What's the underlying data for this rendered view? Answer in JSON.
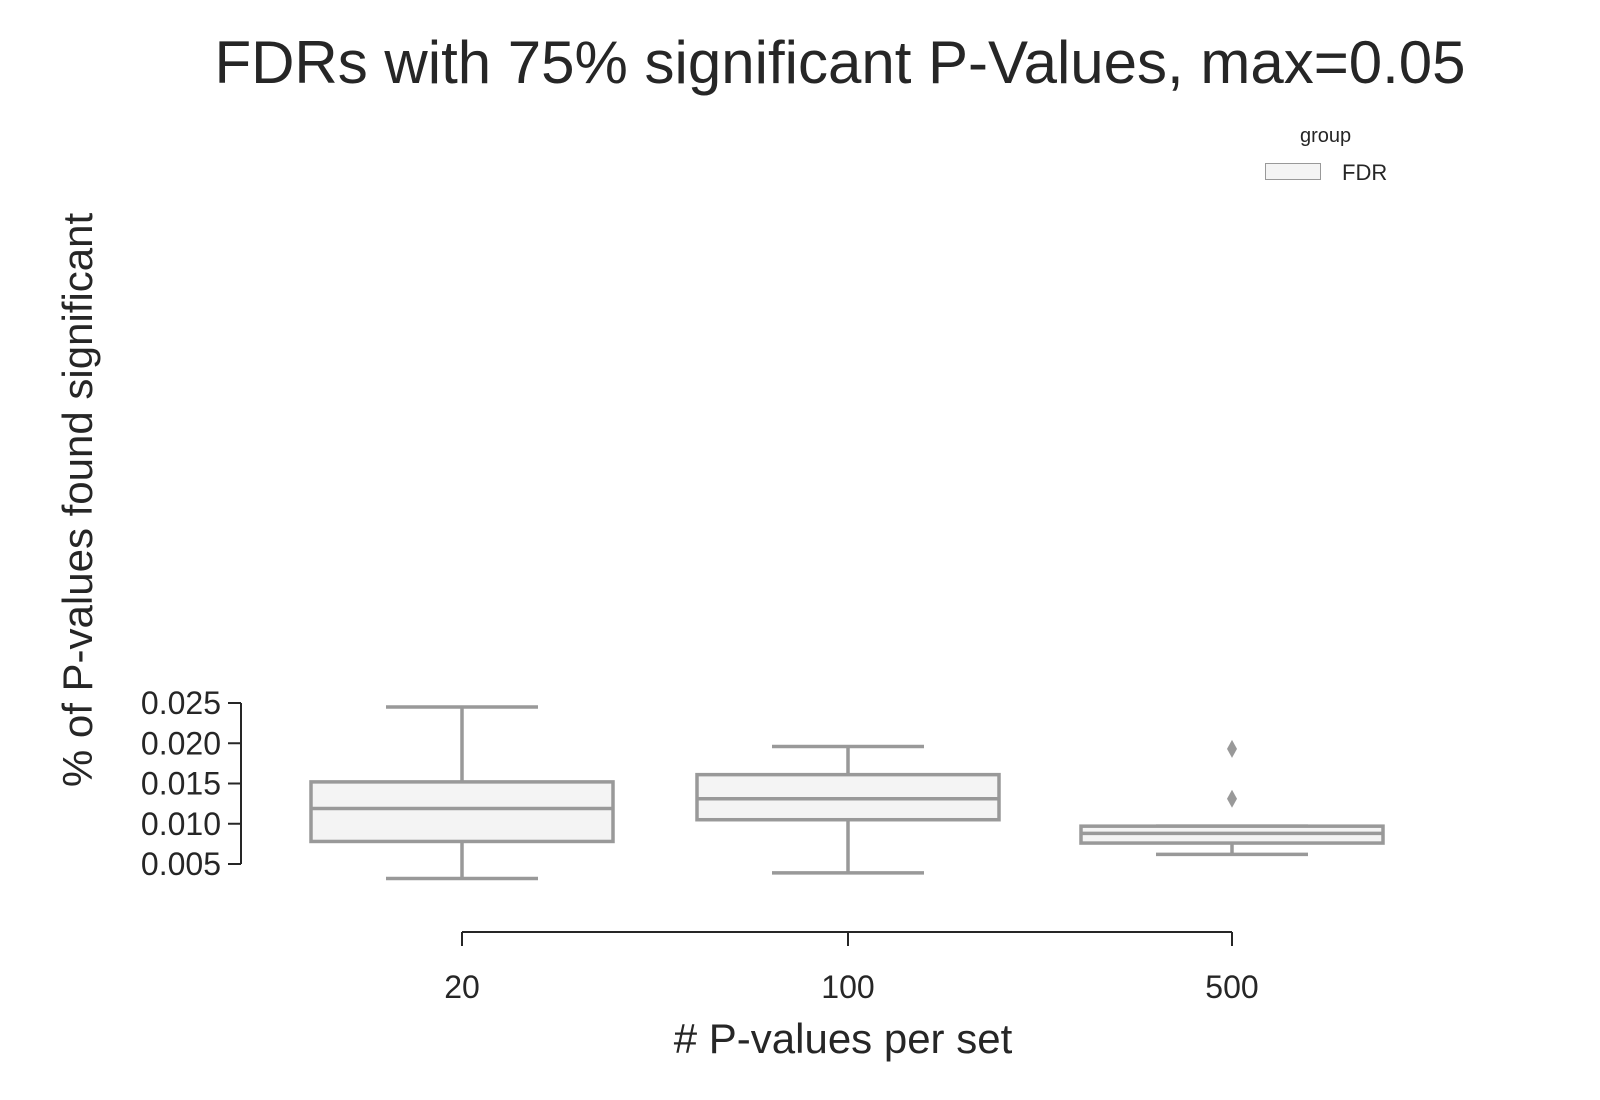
{
  "chart_data": {
    "type": "box",
    "title": "FDRs with 75% significant P-Values, max=0.05",
    "xlabel": "# P-values per set",
    "ylabel": "% of P-values found significant",
    "categories": [
      "20",
      "100",
      "500"
    ],
    "yticks": [
      "0.005",
      "0.010",
      "0.015",
      "0.020",
      "0.025"
    ],
    "ytick_values": [
      0.005,
      0.01,
      0.015,
      0.02,
      0.025
    ],
    "ylim": [
      0.005,
      0.025
    ],
    "legend": {
      "title": "group",
      "entries": [
        "FDR"
      ],
      "position": "top-right"
    },
    "series": [
      {
        "name": "FDR",
        "color": "#999999",
        "fill": "#f4f4f4",
        "boxes": [
          {
            "whislo": 0.0032,
            "q1": 0.0078,
            "med": 0.0119,
            "q3": 0.0152,
            "whishi": 0.0245,
            "fliers": []
          },
          {
            "whislo": 0.0039,
            "q1": 0.0105,
            "med": 0.0131,
            "q3": 0.0161,
            "whishi": 0.0196,
            "fliers": []
          },
          {
            "whislo": 0.0062,
            "q1": 0.0076,
            "med": 0.0088,
            "q3": 0.0097,
            "whishi": 0.0097,
            "fliers": [
              0.0131,
              0.0193
            ]
          }
        ]
      }
    ]
  }
}
